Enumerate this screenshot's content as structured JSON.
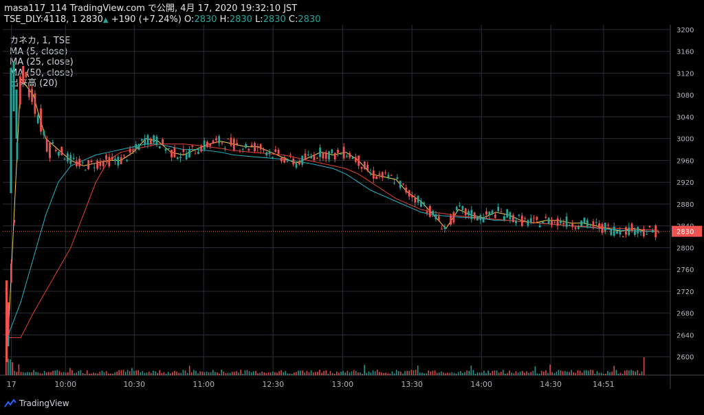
{
  "header": {
    "line1": "masa117_114 TradingView.com で公開, 4月 17, 2020 19:32:10 JST",
    "symbol": "TSE_DLY:4118, 1",
    "last": "2830",
    "change": "+190 (+7.24%)",
    "o_label": "O:",
    "o": "2830",
    "h_label": "H:",
    "h": "2830",
    "l_label": "L:",
    "l": "2830",
    "c_label": "C:",
    "c": "2830"
  },
  "legend": [
    "カネカ, 1, TSE",
    "MA (5, close)",
    "MA (25, close)",
    "MA (50, close)",
    "出来高 (20)"
  ],
  "footer": {
    "brand": "TradingView"
  },
  "colors": {
    "up": "#26a69a",
    "down": "#ef5350",
    "ma5": "#f5d342",
    "ma25": "#26b5c7",
    "ma50": "#e8402f",
    "grid": "#2a2e39",
    "axis_text": "#b2b5be",
    "price_tag": "#ef5350"
  },
  "chart_data": {
    "type": "candlestick",
    "ylim": [
      2570,
      3200
    ],
    "y_ticks": [
      3200,
      3160,
      3120,
      3080,
      3040,
      3000,
      2960,
      2920,
      2880,
      2840,
      2800,
      2760,
      2720,
      2680,
      2640,
      2600
    ],
    "x_ticks": [
      "17",
      "10:00",
      "10:30",
      "11:00",
      "12:30",
      "13:00",
      "13:30",
      "14:00",
      "14:30",
      "14:51"
    ],
    "current_price": "2830",
    "series": [
      {
        "name": "MA (5, close)",
        "color": "#f5d342",
        "values": [
          2640,
          3110,
          3080,
          3000,
          2980,
          2960,
          2950,
          2955,
          2960,
          2960,
          2975,
          3000,
          2995,
          2975,
          2970,
          2980,
          2990,
          2995,
          2990,
          2985,
          2985,
          2975,
          2965,
          2955,
          2965,
          2975,
          2970,
          2975,
          2960,
          2935,
          2930,
          2925,
          2900,
          2885,
          2860,
          2835,
          2870,
          2860,
          2855,
          2865,
          2860,
          2850,
          2845,
          2850,
          2850,
          2845,
          2845,
          2840,
          2835,
          2830,
          2835,
          2830,
          2830
        ]
      },
      {
        "name": "MA (25, close)",
        "color": "#26b5c7",
        "values": [
          2640,
          2700,
          2780,
          2860,
          2920,
          2950,
          2960,
          2970,
          2975,
          2980,
          2985,
          2990,
          2990,
          2985,
          2980,
          2980,
          2978,
          2975,
          2970,
          2968,
          2966,
          2964,
          2962,
          2958,
          2955,
          2950,
          2945,
          2935,
          2920,
          2905,
          2895,
          2885,
          2875,
          2865,
          2860,
          2858,
          2856,
          2855,
          2853,
          2850,
          2850,
          2848,
          2846,
          2844,
          2842,
          2840,
          2838,
          2836,
          2834,
          2832,
          2831,
          2830,
          2830
        ]
      },
      {
        "name": "MA (50, close)",
        "color": "#e8402f",
        "values": [
          2635,
          2635,
          2680,
          2720,
          2760,
          2800,
          2860,
          2920,
          2960,
          2975,
          2980,
          2985,
          2990,
          2990,
          2990,
          2988,
          2985,
          2982,
          2978,
          2976,
          2974,
          2972,
          2970,
          2965,
          2960,
          2955,
          2950,
          2945,
          2935,
          2920,
          2905,
          2890,
          2880,
          2870,
          2865,
          2862,
          2858,
          2856,
          2854,
          2852,
          2850,
          2848,
          2846,
          2844,
          2842,
          2840,
          2839,
          2837,
          2836,
          2835,
          2834,
          2833,
          2832
        ]
      }
    ],
    "volume": {
      "name": "出来高 (20)",
      "max_spike": "last bar"
    }
  }
}
